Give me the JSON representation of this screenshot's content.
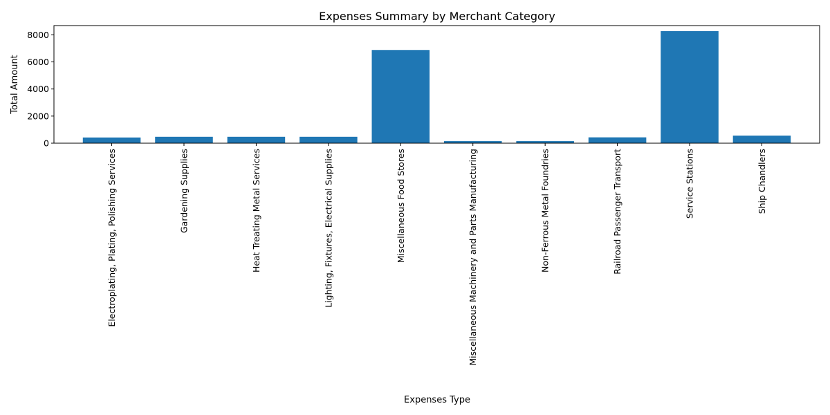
{
  "chart_data": {
    "type": "bar",
    "title": "Expenses Summary by Merchant Category",
    "xlabel": "Expenses Type",
    "ylabel": "Total Amount",
    "categories": [
      "Electroplating, Plating, Polishing Services",
      "Gardening Supplies",
      "Heat Treating Metal Services",
      "Lighting, Fixtures, Electrical Supplies",
      "Miscellaneous Food Stores",
      "Miscellaneous Machinery and Parts Manufacturing",
      "Non-Ferrous Metal Foundries",
      "Railroad Passenger Transport",
      "Service Stations",
      "Ship Chandlers"
    ],
    "values": [
      420,
      470,
      470,
      470,
      6880,
      150,
      150,
      430,
      8270,
      560
    ],
    "ylim": [
      0,
      8680
    ],
    "yticks": [
      0,
      2000,
      4000,
      6000,
      8000
    ],
    "grid": false,
    "bar_color": "#1f77b4"
  }
}
